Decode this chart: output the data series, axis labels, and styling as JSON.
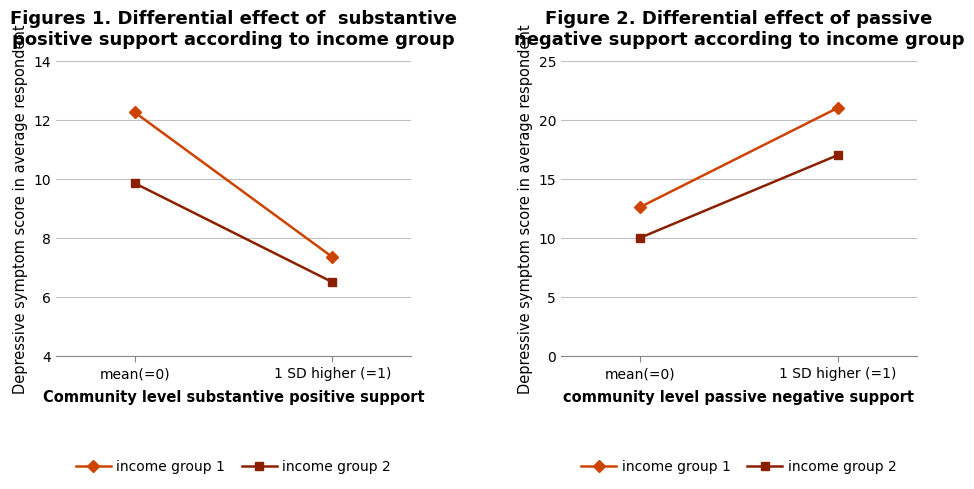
{
  "fig1": {
    "title": "Figures 1. Differential effect of  substantive\npositive support according to income group",
    "xlabel": "Community level substantive positive support",
    "ylabel": "Depressive symptom score in average respondent",
    "xtick_labels": [
      "mean(=0)",
      "1 SD higher (=1)"
    ],
    "ylim": [
      4,
      14
    ],
    "yticks": [
      4,
      6,
      8,
      10,
      12,
      14
    ],
    "group1": {
      "label": "income group 1",
      "x": [
        0,
        1
      ],
      "y": [
        12.25,
        7.35
      ],
      "color": "#CC4400",
      "marker": "D"
    },
    "group2": {
      "label": "income group 2",
      "x": [
        0,
        1
      ],
      "y": [
        9.85,
        6.5
      ],
      "color": "#8B2000",
      "marker": "s"
    }
  },
  "fig2": {
    "title": "Figure 2. Differential effect of passive\nnegative support according to income group",
    "xlabel": "community level passive negative support",
    "ylabel": "Depressive symptom score in average respondent",
    "xtick_labels": [
      "mean(=0)",
      "1 SD higher (=1)"
    ],
    "ylim": [
      0,
      25
    ],
    "yticks": [
      0,
      5,
      10,
      15,
      20,
      25
    ],
    "group1": {
      "label": "income group 1",
      "x": [
        0,
        1
      ],
      "y": [
        12.6,
        21.0
      ],
      "color": "#CC4400",
      "marker": "D"
    },
    "group2": {
      "label": "income group 2",
      "x": [
        0,
        1
      ],
      "y": [
        10.0,
        17.0
      ],
      "color": "#8B2000",
      "marker": "s"
    }
  },
  "background_color": "#ffffff",
  "title_fontsize": 13,
  "label_fontsize": 10.5,
  "tick_fontsize": 10,
  "legend_fontsize": 10
}
